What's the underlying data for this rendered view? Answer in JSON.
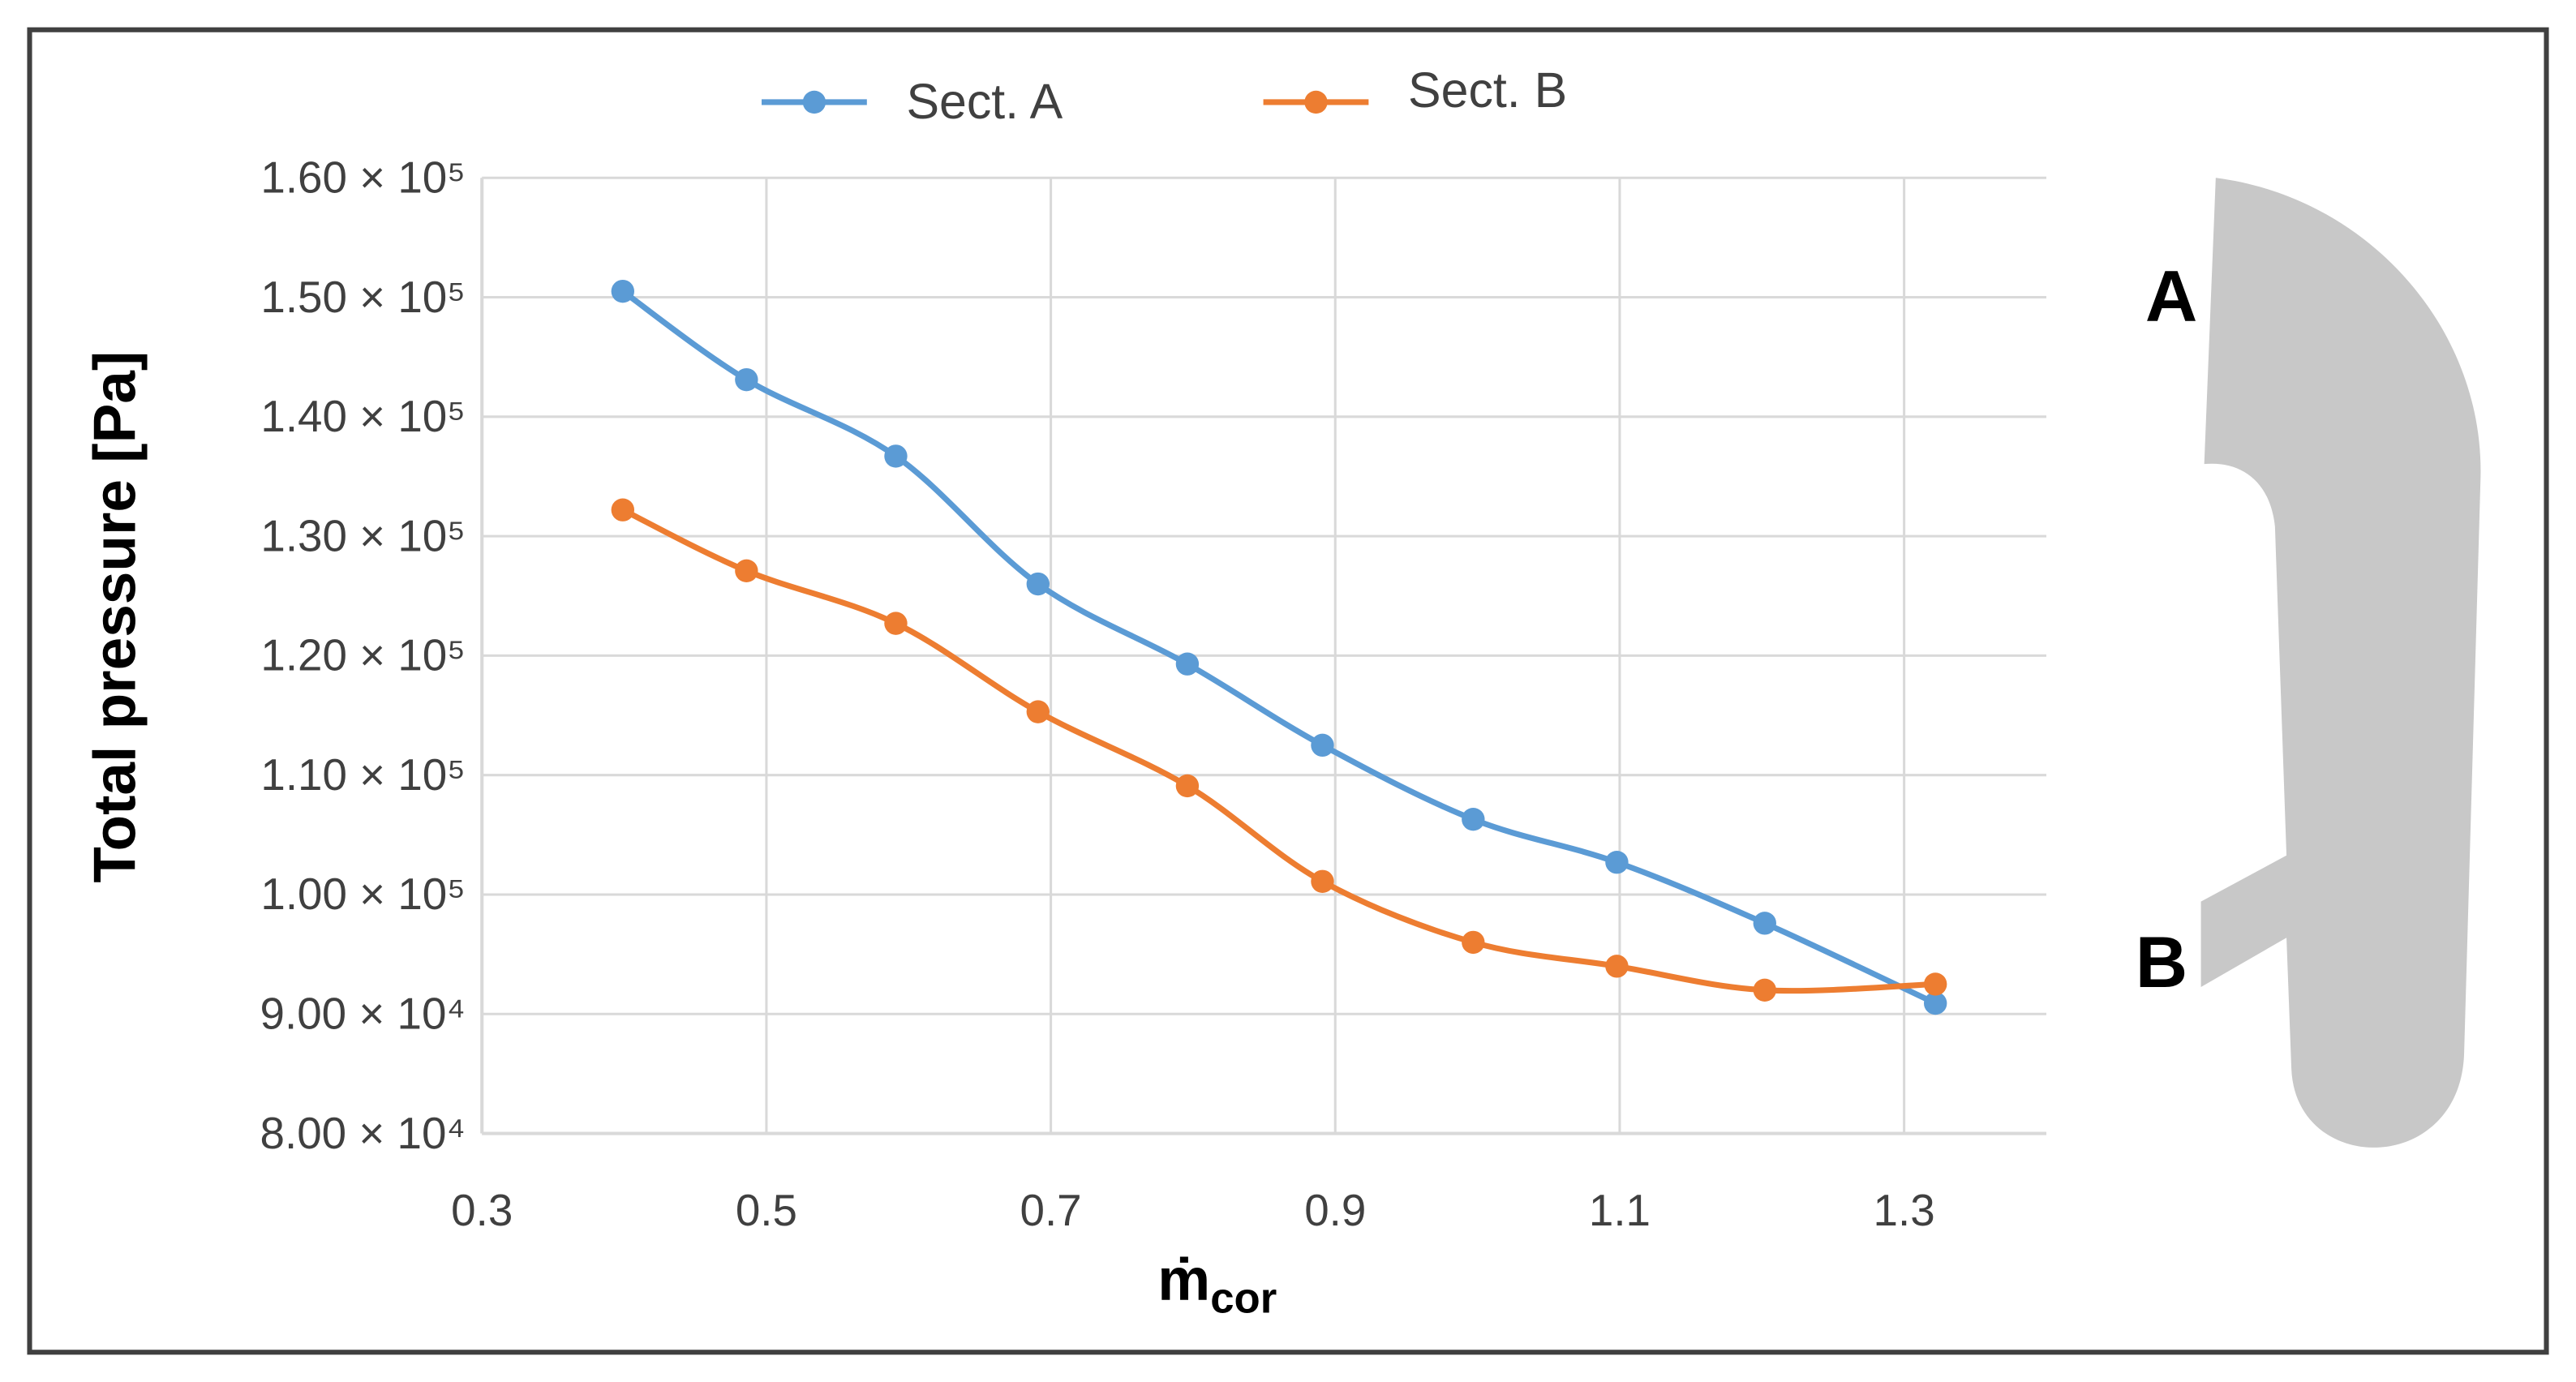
{
  "chart_data": {
    "type": "line",
    "ylabel": "Total pressure [Pa]",
    "xlabel": "ṁ",
    "xlabel_subscript": "cor",
    "xlim": [
      0.3,
      1.4
    ],
    "xticks": [
      0.3,
      0.5,
      0.7,
      0.9,
      1.1,
      1.3
    ],
    "ylim": [
      80000,
      160000
    ],
    "yticks": [
      {
        "value": 80000,
        "label": "8.00 × 10⁴"
      },
      {
        "value": 90000,
        "label": "9.00 × 10⁴"
      },
      {
        "value": 100000,
        "label": "1.00 × 10⁵"
      },
      {
        "value": 110000,
        "label": "1.10 × 10⁵"
      },
      {
        "value": 120000,
        "label": "1.20 × 10⁵"
      },
      {
        "value": 130000,
        "label": "1.30 × 10⁵"
      },
      {
        "value": 140000,
        "label": "1.40 × 10⁵"
      },
      {
        "value": 150000,
        "label": "1.50 × 10⁵"
      },
      {
        "value": 160000,
        "label": "1.60 × 10⁵"
      }
    ],
    "grid": true,
    "smooth": true,
    "legend": "top",
    "x": [
      0.399,
      0.486,
      0.591,
      0.691,
      0.796,
      0.891,
      0.997,
      1.098,
      1.202,
      1.322
    ],
    "series": [
      {
        "name": "Sect. A",
        "color": "#5b9bd5",
        "values": [
          150500,
          143100,
          136700,
          126000,
          119300,
          112500,
          106300,
          102700,
          97600,
          90900
        ]
      },
      {
        "name": "Sect. B",
        "color": "#ed7d31",
        "values": [
          132200,
          127100,
          122700,
          115300,
          109100,
          101100,
          96000,
          94000,
          92000,
          92500
        ]
      }
    ],
    "annotations": [
      "A",
      "B"
    ]
  }
}
